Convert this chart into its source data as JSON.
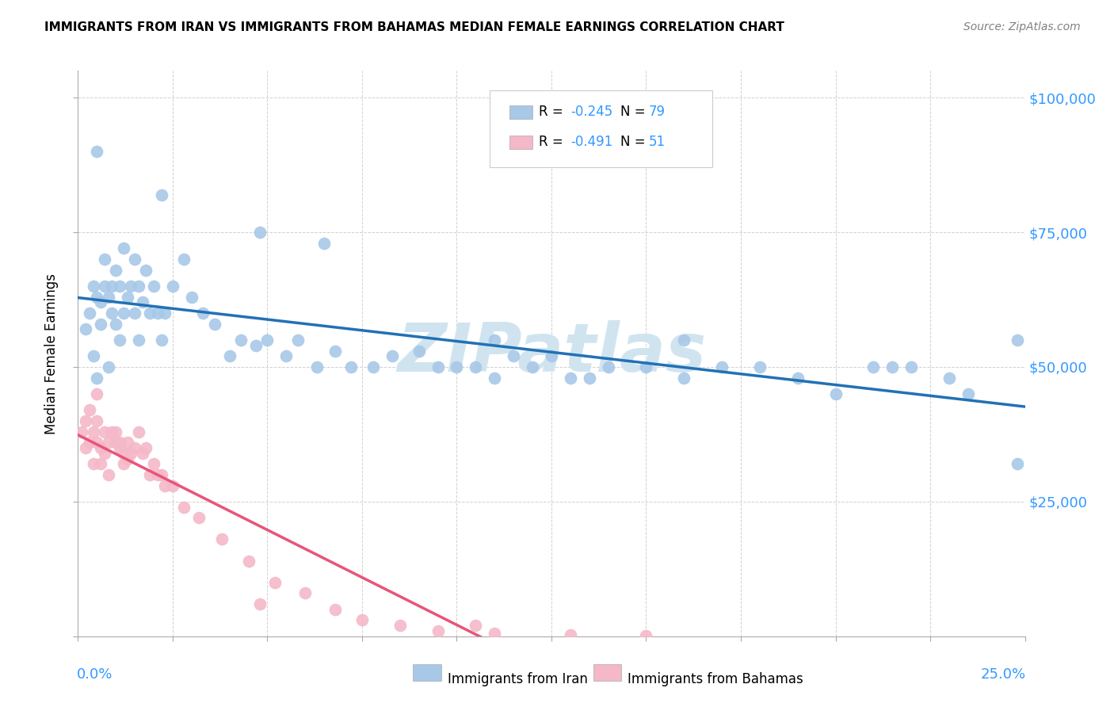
{
  "title": "IMMIGRANTS FROM IRAN VS IMMIGRANTS FROM BAHAMAS MEDIAN FEMALE EARNINGS CORRELATION CHART",
  "source": "Source: ZipAtlas.com",
  "ylabel": "Median Female Earnings",
  "xmin": 0.0,
  "xmax": 0.25,
  "ymin": 0,
  "ymax": 105000,
  "iran_R": -0.245,
  "iran_N": 79,
  "bahamas_R": -0.491,
  "bahamas_N": 51,
  "iran_color": "#a8c8e8",
  "bahamas_color": "#f4b8c8",
  "iran_line_color": "#2171b5",
  "bahamas_line_color": "#e8547a",
  "legend_text_color": "#3399ff",
  "watermark_color": "#d0e4f0",
  "iran_x": [
    0.002,
    0.003,
    0.004,
    0.004,
    0.005,
    0.005,
    0.006,
    0.006,
    0.007,
    0.007,
    0.008,
    0.008,
    0.009,
    0.009,
    0.01,
    0.01,
    0.011,
    0.011,
    0.012,
    0.012,
    0.013,
    0.014,
    0.015,
    0.015,
    0.016,
    0.016,
    0.017,
    0.018,
    0.019,
    0.02,
    0.021,
    0.022,
    0.023,
    0.025,
    0.028,
    0.03,
    0.033,
    0.036,
    0.04,
    0.043,
    0.047,
    0.05,
    0.055,
    0.058,
    0.063,
    0.068,
    0.072,
    0.078,
    0.083,
    0.09,
    0.095,
    0.1,
    0.105,
    0.11,
    0.115,
    0.12,
    0.125,
    0.13,
    0.14,
    0.15,
    0.16,
    0.17,
    0.18,
    0.19,
    0.2,
    0.21,
    0.22,
    0.23,
    0.005,
    0.022,
    0.048,
    0.065,
    0.11,
    0.135,
    0.16,
    0.215,
    0.235,
    0.248,
    0.248
  ],
  "iran_y": [
    57000,
    60000,
    65000,
    52000,
    63000,
    48000,
    62000,
    58000,
    70000,
    65000,
    63000,
    50000,
    65000,
    60000,
    68000,
    58000,
    65000,
    55000,
    72000,
    60000,
    63000,
    65000,
    60000,
    70000,
    65000,
    55000,
    62000,
    68000,
    60000,
    65000,
    60000,
    55000,
    60000,
    65000,
    70000,
    63000,
    60000,
    58000,
    52000,
    55000,
    54000,
    55000,
    52000,
    55000,
    50000,
    53000,
    50000,
    50000,
    52000,
    53000,
    50000,
    50000,
    50000,
    48000,
    52000,
    50000,
    52000,
    48000,
    50000,
    50000,
    48000,
    50000,
    50000,
    48000,
    45000,
    50000,
    50000,
    48000,
    90000,
    82000,
    75000,
    73000,
    55000,
    48000,
    55000,
    50000,
    45000,
    55000,
    32000
  ],
  "bahamas_x": [
    0.001,
    0.002,
    0.002,
    0.003,
    0.003,
    0.004,
    0.004,
    0.005,
    0.005,
    0.006,
    0.006,
    0.007,
    0.007,
    0.008,
    0.008,
    0.009,
    0.01,
    0.01,
    0.011,
    0.011,
    0.012,
    0.012,
    0.013,
    0.013,
    0.014,
    0.015,
    0.016,
    0.017,
    0.018,
    0.019,
    0.02,
    0.021,
    0.022,
    0.023,
    0.025,
    0.028,
    0.032,
    0.038,
    0.045,
    0.052,
    0.06,
    0.068,
    0.075,
    0.085,
    0.095,
    0.11,
    0.13,
    0.15,
    0.005,
    0.048,
    0.105
  ],
  "bahamas_y": [
    38000,
    40000,
    35000,
    42000,
    36000,
    38000,
    32000,
    40000,
    36000,
    35000,
    32000,
    38000,
    34000,
    36000,
    30000,
    38000,
    36000,
    38000,
    35000,
    36000,
    34000,
    32000,
    33000,
    36000,
    34000,
    35000,
    38000,
    34000,
    35000,
    30000,
    32000,
    30000,
    30000,
    28000,
    28000,
    24000,
    22000,
    18000,
    14000,
    10000,
    8000,
    5000,
    3000,
    2000,
    1000,
    500,
    200,
    100,
    45000,
    6000,
    2000
  ]
}
